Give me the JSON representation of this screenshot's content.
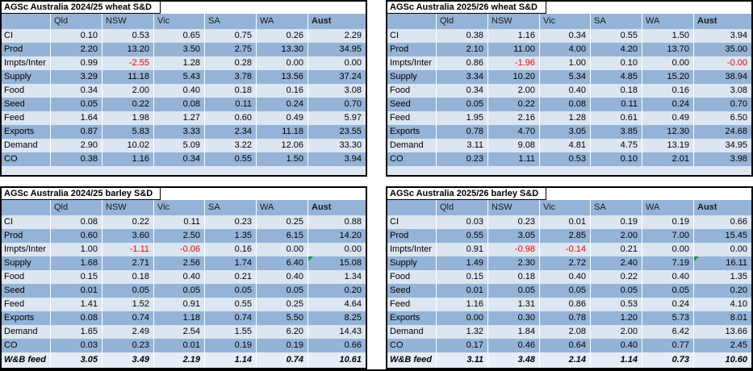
{
  "colors": {
    "row_light": "#dce6f1",
    "row_dark": "#95b3d7",
    "header_fill": "#95b3d7",
    "negative_text": "#f00000",
    "comment_indicator_green": "#1f8b44",
    "frame_border": "#000000"
  },
  "tables": [
    {
      "title": "AGSc Australia 2024/25 wheat S&D",
      "columns": [
        "",
        "Qld",
        "NSW",
        "Vic",
        "SA",
        "WA",
        "Aust"
      ],
      "rows": [
        {
          "label": "CI",
          "values": [
            "0.10",
            "0.53",
            "0.65",
            "0.75",
            "0.26",
            "2.29"
          ]
        },
        {
          "label": "Prod",
          "values": [
            "2.20",
            "13.20",
            "3.50",
            "2.75",
            "13.30",
            "34.95"
          ]
        },
        {
          "label": "Impts/Inter",
          "values": [
            "0.99",
            "-2.55",
            "1.28",
            "0.28",
            "0.00",
            "0.00"
          ]
        },
        {
          "label": "Supply",
          "values": [
            "3.29",
            "11.18",
            "5.43",
            "3.78",
            "13.56",
            "37.24"
          ]
        },
        {
          "label": "Food",
          "values": [
            "0.34",
            "2.00",
            "0.40",
            "0.18",
            "0.16",
            "3.08"
          ]
        },
        {
          "label": "Seed",
          "values": [
            "0.05",
            "0.22",
            "0.08",
            "0.11",
            "0.24",
            "0.70"
          ]
        },
        {
          "label": "Feed",
          "values": [
            "1.64",
            "1.98",
            "1.27",
            "0.60",
            "0.49",
            "5.97"
          ]
        },
        {
          "label": "Exports",
          "values": [
            "0.87",
            "5.83",
            "3.33",
            "2.34",
            "11.18",
            "23.55"
          ]
        },
        {
          "label": "Demand",
          "values": [
            "2.90",
            "10.02",
            "5.09",
            "3.22",
            "12.06",
            "33.30"
          ]
        },
        {
          "label": "CO",
          "values": [
            "0.38",
            "1.16",
            "0.34",
            "0.55",
            "1.50",
            "3.94"
          ]
        }
      ],
      "footer": null,
      "indicator": null
    },
    {
      "title": "AGSc Australia 2025/26 wheat S&D",
      "columns": [
        "",
        "Qld",
        "NSW",
        "Vic",
        "SA",
        "WA",
        "Aust"
      ],
      "rows": [
        {
          "label": "CI",
          "values": [
            "0.38",
            "1.16",
            "0.34",
            "0.55",
            "1.50",
            "3.94"
          ]
        },
        {
          "label": "Prod",
          "values": [
            "2.10",
            "11.00",
            "4.00",
            "4.20",
            "13.70",
            "35.00"
          ]
        },
        {
          "label": "Impts/Inter",
          "values": [
            "0.86",
            "-1.96",
            "1.00",
            "0.10",
            "0.00",
            "-0.00"
          ]
        },
        {
          "label": "Supply",
          "values": [
            "3.34",
            "10.20",
            "5.34",
            "4.85",
            "15.20",
            "38.94"
          ]
        },
        {
          "label": "Food",
          "values": [
            "0.34",
            "2.00",
            "0.40",
            "0.18",
            "0.16",
            "3.08"
          ]
        },
        {
          "label": "Seed",
          "values": [
            "0.05",
            "0.22",
            "0.08",
            "0.11",
            "0.24",
            "0.70"
          ]
        },
        {
          "label": "Feed",
          "values": [
            "1.95",
            "2.16",
            "1.28",
            "0.61",
            "0.49",
            "6.50"
          ]
        },
        {
          "label": "Exports",
          "values": [
            "0.78",
            "4.70",
            "3.05",
            "3.85",
            "12.30",
            "24.68"
          ]
        },
        {
          "label": "Demand",
          "values": [
            "3.11",
            "9.08",
            "4.81",
            "4.75",
            "13.19",
            "34.95"
          ]
        },
        {
          "label": "CO",
          "values": [
            "0.23",
            "1.11",
            "0.53",
            "0.10",
            "2.01",
            "3.98"
          ]
        }
      ],
      "footer": null,
      "indicator": null
    },
    {
      "title": "AGSc Australia 2024/25 barley S&D",
      "columns": [
        "",
        "Qld",
        "NSW",
        "Vic",
        "SA",
        "WA",
        "Aust"
      ],
      "rows": [
        {
          "label": "CI",
          "values": [
            "0.08",
            "0.22",
            "0.11",
            "0.23",
            "0.25",
            "0.88"
          ]
        },
        {
          "label": "Prod",
          "values": [
            "0.60",
            "3.60",
            "2.50",
            "1.35",
            "6.15",
            "14.20"
          ]
        },
        {
          "label": "Impts/Inter",
          "values": [
            "1.00",
            "-1.11",
            "-0.06",
            "0.16",
            "0.00",
            "0.00"
          ]
        },
        {
          "label": "Supply",
          "values": [
            "1.68",
            "2.71",
            "2.56",
            "1.74",
            "6.40",
            "15.08"
          ]
        },
        {
          "label": "Food",
          "values": [
            "0.15",
            "0.18",
            "0.40",
            "0.21",
            "0.40",
            "1.34"
          ]
        },
        {
          "label": "Seed",
          "values": [
            "0.01",
            "0.05",
            "0.05",
            "0.05",
            "0.05",
            "0.20"
          ]
        },
        {
          "label": "Feed",
          "values": [
            "1.41",
            "1.52",
            "0.91",
            "0.55",
            "0.25",
            "4.64"
          ]
        },
        {
          "label": "Exports",
          "values": [
            "0.08",
            "0.74",
            "1.18",
            "0.74",
            "5.50",
            "8.25"
          ]
        },
        {
          "label": "Demand",
          "values": [
            "1.65",
            "2.49",
            "2.54",
            "1.55",
            "6.20",
            "14.43"
          ]
        },
        {
          "label": "CO",
          "values": [
            "0.03",
            "0.23",
            "0.01",
            "0.19",
            "0.19",
            "0.66"
          ]
        }
      ],
      "footer": {
        "label": "W&B feed",
        "values": [
          "3.05",
          "3.49",
          "2.19",
          "1.14",
          "0.74",
          "10.61"
        ]
      },
      "indicator": {
        "row": "Supply",
        "col": "Aust"
      }
    },
    {
      "title": "AGSc Australia 2025/26 barley S&D",
      "columns": [
        "",
        "Qld",
        "NSW",
        "Vic",
        "SA",
        "WA",
        "Aust"
      ],
      "rows": [
        {
          "label": "CI",
          "values": [
            "0.03",
            "0.23",
            "0.01",
            "0.19",
            "0.19",
            "0.66"
          ]
        },
        {
          "label": "Prod",
          "values": [
            "0.55",
            "3.05",
            "2.85",
            "2.00",
            "7.00",
            "15.45"
          ]
        },
        {
          "label": "Impts/Inter",
          "values": [
            "0.91",
            "-0.98",
            "-0.14",
            "0.21",
            "0.00",
            "0.00"
          ]
        },
        {
          "label": "Supply",
          "values": [
            "1.49",
            "2.30",
            "2.72",
            "2.40",
            "7.19",
            "16.11"
          ]
        },
        {
          "label": "Food",
          "values": [
            "0.15",
            "0.18",
            "0.40",
            "0.22",
            "0.40",
            "1.35"
          ]
        },
        {
          "label": "Seed",
          "values": [
            "0.01",
            "0.05",
            "0.05",
            "0.05",
            "0.05",
            "0.20"
          ]
        },
        {
          "label": "Feed",
          "values": [
            "1.16",
            "1.31",
            "0.86",
            "0.53",
            "0.24",
            "4.10"
          ]
        },
        {
          "label": "Exports",
          "values": [
            "0.00",
            "0.30",
            "0.78",
            "1.20",
            "5.73",
            "8.01"
          ]
        },
        {
          "label": "Demand",
          "values": [
            "1.32",
            "1.84",
            "2.08",
            "2.00",
            "6.42",
            "13.66"
          ]
        },
        {
          "label": "CO",
          "values": [
            "0.17",
            "0.46",
            "0.64",
            "0.40",
            "0.77",
            "2.45"
          ]
        }
      ],
      "footer": {
        "label": "W&B feed",
        "values": [
          "3.11",
          "3.48",
          "2.14",
          "1.14",
          "0.73",
          "10.60"
        ]
      },
      "indicator": {
        "row": "Supply",
        "col": "Aust"
      }
    }
  ]
}
